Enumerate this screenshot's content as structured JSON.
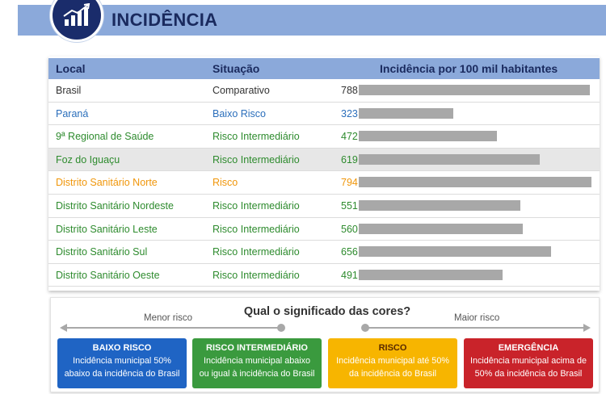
{
  "header": {
    "title": "INCIDÊNCIA",
    "logo_icon": "bar-chart-trend-icon"
  },
  "colors": {
    "header_bg": "#8ba9da",
    "title_text": "#1a2a5e",
    "logo_bg": "#1a2c6b",
    "comparativo": "#333333",
    "baixo_risco": "#2a6ebb",
    "risco_intermediario": "#2e8b2e",
    "risco": "#f0960a",
    "bar": "#a8a8a8"
  },
  "table": {
    "headers": {
      "local": "Local",
      "situacao": "Situação",
      "incidencia": "Incidência por 100 mil habitantes"
    },
    "rows": [
      {
        "local": "Brasil",
        "situacao": "Comparativo",
        "value": 788,
        "value_label": "788",
        "color": "#333333"
      },
      {
        "local": "Paraná",
        "situacao": "Baixo Risco",
        "value": 323,
        "value_label": "323",
        "color": "#2a6ebb"
      },
      {
        "local": "9ª Regional de Saúde",
        "situacao": "Risco Intermediário",
        "value": 472,
        "value_label": "472",
        "color": "#2e8b2e"
      },
      {
        "local": "Foz do Iguaçu",
        "situacao": "Risco Intermediário",
        "value": 619,
        "value_label": "619",
        "color": "#2e8b2e"
      },
      {
        "local": "Distrito Sanitário Norte",
        "situacao": "Risco",
        "value": 794,
        "value_label": "794",
        "color": "#f0960a"
      },
      {
        "local": "Distrito Sanitário Nordeste",
        "situacao": "Risco Intermediário",
        "value": 551,
        "value_label": "551",
        "color": "#2e8b2e"
      },
      {
        "local": "Distrito Sanitário Leste",
        "situacao": "Risco Intermediário",
        "value": 560,
        "value_label": "560",
        "color": "#2e8b2e"
      },
      {
        "local": "Distrito Sanitário Sul",
        "situacao": "Risco Intermediário",
        "value": 656,
        "value_label": "656",
        "color": "#2e8b2e"
      },
      {
        "local": "Distrito Sanitário Oeste",
        "situacao": "Risco Intermediário",
        "value": 491,
        "value_label": "491",
        "color": "#2e8b2e"
      }
    ]
  },
  "legend": {
    "question": "Qual o significado das cores?",
    "menor_risco": "Menor risco",
    "maior_risco": "Maior risco",
    "boxes": [
      {
        "title": "BAIXO RISCO",
        "desc_line1": "Incidência municipal 50%",
        "desc_line2": "abaixo da incidência do Brasil",
        "color": "#1f64c4"
      },
      {
        "title": "RISCO INTERMEDIÁRIO",
        "desc_line1": "Incidência municipal abaixo",
        "desc_line2": "ou igual à incidência do Brasil",
        "color": "#3a9a3e"
      },
      {
        "title": "RISCO",
        "desc_line1": "Incidência municipal até 50%",
        "desc_line2": "da incidência do Brasil",
        "color": "#f7b500"
      },
      {
        "title": "EMERGÊNCIA",
        "desc_line1": "Incidência municipal acima de",
        "desc_line2": "50% da incidência do Brasil",
        "color": "#c9232a"
      }
    ]
  }
}
